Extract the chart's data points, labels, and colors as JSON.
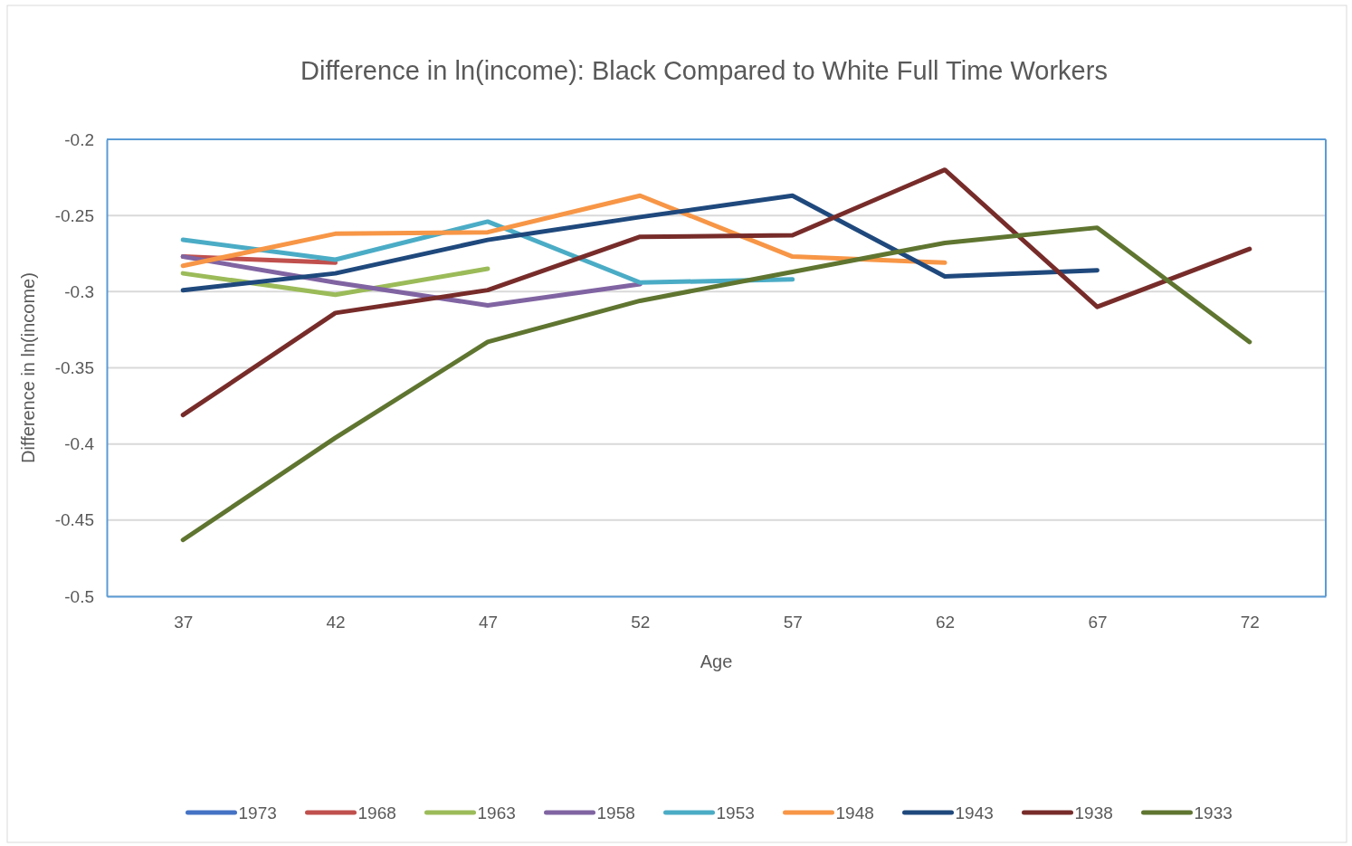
{
  "chart_data": {
    "type": "line",
    "title": "Difference in ln(income): Black Compared to White Full Time Workers",
    "xlabel": "Age",
    "ylabel": "Difference in ln(income)",
    "categories": [
      "37",
      "42",
      "47",
      "52",
      "57",
      "62",
      "67",
      "72"
    ],
    "ylim": [
      -0.5,
      -0.2
    ],
    "yticks": [
      -0.5,
      -0.45,
      -0.4,
      -0.35,
      -0.3,
      -0.25,
      -0.2
    ],
    "grid": "y",
    "legend": "bottom",
    "marker": "none",
    "line_style": "solid",
    "series": [
      {
        "name": "1973",
        "color": "#4472c4",
        "values": [
          null,
          null,
          null,
          null,
          null,
          null,
          null,
          null
        ]
      },
      {
        "name": "1968",
        "color": "#c0504d",
        "values": [
          -0.277,
          -0.281,
          null,
          null,
          null,
          null,
          null,
          null
        ]
      },
      {
        "name": "1963",
        "color": "#9bbb59",
        "values": [
          -0.288,
          -0.302,
          -0.285,
          null,
          null,
          null,
          null,
          null
        ]
      },
      {
        "name": "1958",
        "color": "#8064a2",
        "values": [
          -0.277,
          -0.294,
          -0.309,
          -0.295,
          null,
          null,
          null,
          null
        ]
      },
      {
        "name": "1953",
        "color": "#4bacc6",
        "values": [
          -0.266,
          -0.279,
          -0.254,
          -0.294,
          -0.292,
          null,
          null,
          null
        ]
      },
      {
        "name": "1948",
        "color": "#f79646",
        "values": [
          -0.283,
          -0.262,
          -0.261,
          -0.237,
          -0.277,
          -0.281,
          null,
          null
        ]
      },
      {
        "name": "1943",
        "color": "#1f497d",
        "values": [
          -0.299,
          -0.288,
          -0.266,
          -0.251,
          -0.237,
          -0.29,
          -0.286,
          null
        ]
      },
      {
        "name": "1938",
        "color": "#772c2a",
        "values": [
          -0.381,
          -0.314,
          -0.299,
          -0.264,
          -0.263,
          -0.22,
          -0.31,
          -0.272
        ]
      },
      {
        "name": "1933",
        "color": "#5f7530",
        "values": [
          -0.463,
          -0.396,
          -0.333,
          -0.306,
          -0.287,
          -0.268,
          -0.258,
          -0.333
        ]
      }
    ]
  }
}
